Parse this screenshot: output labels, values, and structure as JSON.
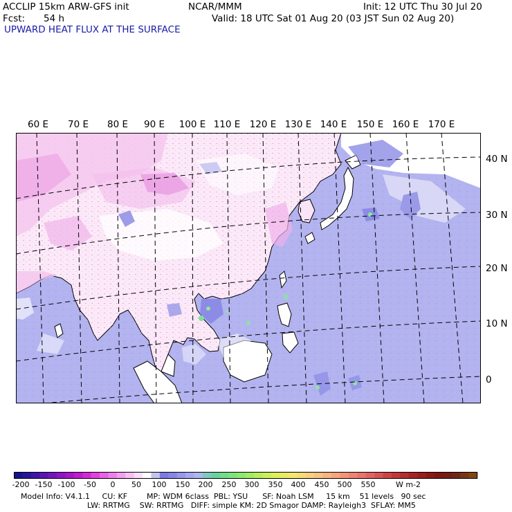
{
  "header": {
    "model": "ACCLIP 15km ARW-GFS init",
    "center": "NCAR/MMM",
    "init": "Init: 12 UTC Thu 30 Jul 20",
    "fcst_label": "Fcst:",
    "fcst_value": "54 h",
    "valid": "Valid: 18 UTC Sat 01 Aug 20 (03 JST Sun 02 Aug 20)",
    "field_title": "UPWARD HEAT FLUX AT THE SURFACE"
  },
  "map": {
    "lon_labels": [
      "60 E",
      "70 E",
      "80 E",
      "90 E",
      "100 E",
      "110 E",
      "120 E",
      "130 E",
      "140 E",
      "150 E",
      "160 E",
      "170 E"
    ],
    "lat_labels": [
      "40 N",
      "30 N",
      "20 N",
      "10 N",
      "0"
    ],
    "colors": {
      "ocean": "#b3b3f0",
      "land": "#ffffff",
      "pink": "#f7d2f0",
      "magenta": "#e680dc",
      "deep_blue": "#8c8ce6",
      "green": "#8ce6a0"
    }
  },
  "colorbar": {
    "labels": [
      "-200",
      "-150",
      "-100",
      "-50",
      "0",
      "50",
      "100",
      "150",
      "200",
      "250",
      "300",
      "350",
      "400",
      "450",
      "500",
      "550"
    ],
    "units": "W m-2"
  },
  "footer": {
    "line1": "Model Info: V4.1.1     CU: KF        MP: WDM 6class  PBL: YSU      SF: Noah LSM     15 km    51 levels   90 sec",
    "line2": "LW: RRTMG    SW: RRTMG   DIFF: simple KM: 2D Smagor DAMP: Rayleigh3  SFLAY: MM5"
  }
}
